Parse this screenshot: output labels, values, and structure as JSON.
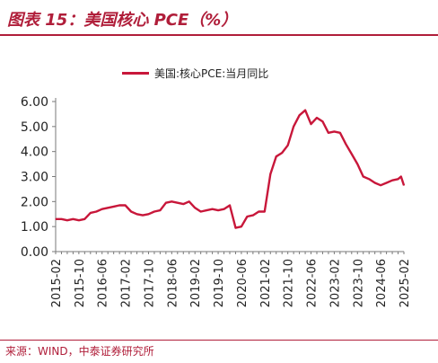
{
  "title": "图表 15：美国核心 PCE（%）",
  "source": "来源：WIND，中泰证券研究所",
  "accent_color": "#c8173a",
  "chart_data": {
    "type": "line",
    "legend_position": "top",
    "grid": false,
    "ylim": [
      0,
      6
    ],
    "yticks": [
      "0.00",
      "1.00",
      "2.00",
      "3.00",
      "4.00",
      "5.00",
      "6.00"
    ],
    "xticks": [
      "2015-02",
      "2015-10",
      "2016-06",
      "2017-02",
      "2017-10",
      "2018-06",
      "2019-02",
      "2019-10",
      "2020-06",
      "2021-02",
      "2021-10",
      "2022-06",
      "2023-02",
      "2023-10",
      "2024-06",
      "2025-02"
    ],
    "series": [
      {
        "name": "美国:核心PCE:当月同比",
        "color": "#c8173a",
        "points": [
          [
            "2015-02",
            1.3
          ],
          [
            "2015-04",
            1.3
          ],
          [
            "2015-06",
            1.25
          ],
          [
            "2015-08",
            1.3
          ],
          [
            "2015-10",
            1.25
          ],
          [
            "2015-12",
            1.3
          ],
          [
            "2016-02",
            1.55
          ],
          [
            "2016-04",
            1.6
          ],
          [
            "2016-06",
            1.7
          ],
          [
            "2016-08",
            1.75
          ],
          [
            "2016-10",
            1.8
          ],
          [
            "2016-12",
            1.85
          ],
          [
            "2017-02",
            1.85
          ],
          [
            "2017-04",
            1.6
          ],
          [
            "2017-06",
            1.5
          ],
          [
            "2017-08",
            1.45
          ],
          [
            "2017-10",
            1.5
          ],
          [
            "2017-12",
            1.6
          ],
          [
            "2018-02",
            1.65
          ],
          [
            "2018-04",
            1.95
          ],
          [
            "2018-06",
            2.0
          ],
          [
            "2018-08",
            1.95
          ],
          [
            "2018-10",
            1.9
          ],
          [
            "2018-12",
            2.0
          ],
          [
            "2019-02",
            1.75
          ],
          [
            "2019-04",
            1.6
          ],
          [
            "2019-06",
            1.65
          ],
          [
            "2019-08",
            1.7
          ],
          [
            "2019-10",
            1.65
          ],
          [
            "2019-12",
            1.7
          ],
          [
            "2020-02",
            1.85
          ],
          [
            "2020-04",
            0.95
          ],
          [
            "2020-06",
            1.0
          ],
          [
            "2020-08",
            1.4
          ],
          [
            "2020-10",
            1.45
          ],
          [
            "2020-12",
            1.6
          ],
          [
            "2021-02",
            1.6
          ],
          [
            "2021-04",
            3.1
          ],
          [
            "2021-06",
            3.8
          ],
          [
            "2021-08",
            3.95
          ],
          [
            "2021-10",
            4.25
          ],
          [
            "2021-12",
            5.0
          ],
          [
            "2022-02",
            5.45
          ],
          [
            "2022-04",
            5.65
          ],
          [
            "2022-06",
            5.1
          ],
          [
            "2022-08",
            5.35
          ],
          [
            "2022-10",
            5.2
          ],
          [
            "2022-12",
            4.75
          ],
          [
            "2023-02",
            4.8
          ],
          [
            "2023-04",
            4.75
          ],
          [
            "2023-06",
            4.3
          ],
          [
            "2023-08",
            3.9
          ],
          [
            "2023-10",
            3.5
          ],
          [
            "2023-12",
            3.0
          ],
          [
            "2024-02",
            2.9
          ],
          [
            "2024-04",
            2.75
          ],
          [
            "2024-06",
            2.65
          ],
          [
            "2024-08",
            2.75
          ],
          [
            "2024-10",
            2.85
          ],
          [
            "2024-12",
            2.9
          ],
          [
            "2025-01",
            3.0
          ],
          [
            "2025-02",
            2.65
          ]
        ]
      }
    ]
  }
}
